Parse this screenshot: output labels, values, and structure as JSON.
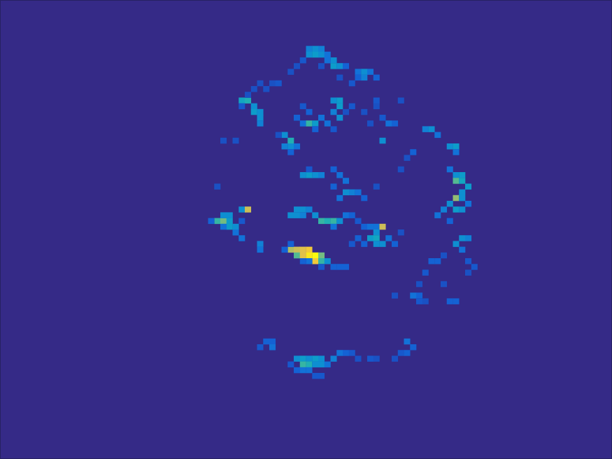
{
  "chart_data": {
    "type": "heatmap",
    "xlim": [
      0.5,
      100.5
    ],
    "ylim": [
      0.5,
      80.5
    ],
    "zlim": [
      0,
      1
    ],
    "tick_labels": false,
    "cells": [
      [
        51,
        9,
        0.25
      ],
      [
        52,
        9,
        0.3
      ],
      [
        53,
        9,
        0.25
      ],
      [
        51,
        10,
        0.3
      ],
      [
        52,
        10,
        0.35
      ],
      [
        53,
        10,
        0.3
      ],
      [
        54,
        10,
        0.2
      ],
      [
        55,
        11,
        0.3
      ],
      [
        55,
        12,
        0.35
      ],
      [
        56,
        12,
        0.3
      ],
      [
        54,
        11,
        0.2
      ],
      [
        50,
        11,
        0.12
      ],
      [
        49,
        12,
        0.1
      ],
      [
        53,
        12,
        0.1
      ],
      [
        57,
        12,
        0.15
      ],
      [
        59,
        13,
        0.2
      ],
      [
        60,
        13,
        0.3
      ],
      [
        61,
        13,
        0.2
      ],
      [
        59,
        14,
        0.15
      ],
      [
        60,
        14,
        0.25
      ],
      [
        62,
        14,
        0.15
      ],
      [
        58,
        15,
        0.12
      ],
      [
        56,
        14,
        0.1
      ],
      [
        48,
        13,
        0.1
      ],
      [
        45,
        15,
        0.1
      ],
      [
        46,
        15,
        0.12
      ],
      [
        43,
        15,
        0.1
      ],
      [
        44,
        16,
        0.1
      ],
      [
        42,
        16,
        0.1
      ],
      [
        40,
        18,
        0.4
      ],
      [
        41,
        18,
        0.45
      ],
      [
        42,
        19,
        0.3
      ],
      [
        42,
        20,
        0.35
      ],
      [
        43,
        20,
        0.3
      ],
      [
        43,
        21,
        0.3
      ],
      [
        43,
        22,
        0.25
      ],
      [
        41,
        17,
        0.1
      ],
      [
        40,
        19,
        0.12
      ],
      [
        50,
        19,
        0.12
      ],
      [
        51,
        20,
        0.15
      ],
      [
        49,
        21,
        0.15
      ],
      [
        50,
        22,
        0.2
      ],
      [
        51,
        22,
        0.5
      ],
      [
        52,
        22,
        0.35
      ],
      [
        53,
        21,
        0.2
      ],
      [
        54,
        22,
        0.2
      ],
      [
        55,
        18,
        0.3
      ],
      [
        56,
        18,
        0.35
      ],
      [
        56,
        19,
        0.35
      ],
      [
        55,
        20,
        0.25
      ],
      [
        56,
        21,
        0.3
      ],
      [
        52,
        23,
        0.15
      ],
      [
        55,
        23,
        0.12
      ],
      [
        57,
        20,
        0.1
      ],
      [
        58,
        19,
        0.12
      ],
      [
        60,
        20,
        0.1
      ],
      [
        62,
        19,
        0.1
      ],
      [
        63,
        21,
        0.12
      ],
      [
        64,
        22,
        0.2
      ],
      [
        65,
        22,
        0.15
      ],
      [
        61,
        22,
        0.1
      ],
      [
        63,
        25,
        0.3
      ],
      [
        62,
        18,
        0.12
      ],
      [
        66,
        18,
        0.1
      ],
      [
        47,
        24,
        0.3
      ],
      [
        48,
        25,
        0.45
      ],
      [
        48,
        26,
        0.3
      ],
      [
        47,
        26,
        0.25
      ],
      [
        49,
        26,
        0.2
      ],
      [
        48,
        27,
        0.15
      ],
      [
        46,
        24,
        0.1
      ],
      [
        37,
        25,
        0.1
      ],
      [
        39,
        25,
        0.1
      ],
      [
        50,
        31,
        0.3
      ],
      [
        51,
        31,
        0.35
      ],
      [
        52,
        31,
        0.3
      ],
      [
        53,
        31,
        0.25
      ],
      [
        51,
        30,
        0.12
      ],
      [
        55,
        30,
        0.15
      ],
      [
        56,
        31,
        0.2
      ],
      [
        57,
        32,
        0.2
      ],
      [
        58,
        34,
        0.25
      ],
      [
        57,
        34,
        0.3
      ],
      [
        56,
        35,
        0.2
      ],
      [
        59,
        34,
        0.2
      ],
      [
        60,
        35,
        0.15
      ],
      [
        55,
        33,
        0.15
      ],
      [
        62,
        33,
        0.1
      ],
      [
        66,
        30,
        0.1
      ],
      [
        68,
        27,
        0.15
      ],
      [
        67,
        28,
        0.1
      ],
      [
        36,
        33,
        0.1
      ],
      [
        70,
        23,
        0.25
      ],
      [
        71,
        23,
        0.3
      ],
      [
        72,
        24,
        0.2
      ],
      [
        74,
        26,
        0.3
      ],
      [
        75,
        26,
        0.35
      ],
      [
        75,
        27,
        0.2
      ],
      [
        74,
        30,
        0.2
      ],
      [
        75,
        31,
        0.3
      ],
      [
        76,
        31,
        0.35
      ],
      [
        75,
        32,
        0.55
      ],
      [
        76,
        32,
        0.4
      ],
      [
        77,
        33,
        0.35
      ],
      [
        76,
        34,
        0.3
      ],
      [
        75,
        35,
        0.65
      ],
      [
        76,
        35,
        0.3
      ],
      [
        74,
        36,
        0.3
      ],
      [
        75,
        37,
        0.35
      ],
      [
        76,
        37,
        0.3
      ],
      [
        73,
        37,
        0.25
      ],
      [
        72,
        38,
        0.2
      ],
      [
        74,
        39,
        0.15
      ],
      [
        77,
        36,
        0.2
      ],
      [
        76,
        42,
        0.3
      ],
      [
        77,
        42,
        0.25
      ],
      [
        75,
        43,
        0.3
      ],
      [
        76,
        44,
        0.2
      ],
      [
        71,
        46,
        0.15
      ],
      [
        72,
        46,
        0.15
      ],
      [
        73,
        45,
        0.1
      ],
      [
        77,
        46,
        0.12
      ],
      [
        78,
        47,
        0.12
      ],
      [
        77,
        48,
        0.1
      ],
      [
        36,
        39,
        0.5
      ],
      [
        37,
        39,
        0.6
      ],
      [
        37,
        38,
        0.3
      ],
      [
        38,
        38,
        0.3
      ],
      [
        40,
        37,
        0.3
      ],
      [
        41,
        37,
        0.75
      ],
      [
        38,
        39,
        0.35
      ],
      [
        39,
        40,
        0.3
      ],
      [
        38,
        40,
        0.35
      ],
      [
        39,
        41,
        0.2
      ],
      [
        40,
        42,
        0.2
      ],
      [
        43,
        43,
        0.25
      ],
      [
        43,
        44,
        0.2
      ],
      [
        37,
        40,
        0.2
      ],
      [
        35,
        39,
        0.15
      ],
      [
        40,
        39,
        0.12
      ],
      [
        49,
        37,
        0.3
      ],
      [
        50,
        37,
        0.3
      ],
      [
        51,
        37,
        0.25
      ],
      [
        48,
        38,
        0.3
      ],
      [
        49,
        38,
        0.3
      ],
      [
        50,
        38,
        0.25
      ],
      [
        52,
        38,
        0.3
      ],
      [
        53,
        39,
        0.5
      ],
      [
        54,
        39,
        0.45
      ],
      [
        55,
        39,
        0.5
      ],
      [
        56,
        39,
        0.3
      ],
      [
        55,
        40,
        0.2
      ],
      [
        57,
        38,
        0.2
      ],
      [
        58,
        38,
        0.15
      ],
      [
        59,
        39,
        0.12
      ],
      [
        60,
        40,
        0.15
      ],
      [
        61,
        40,
        0.2
      ],
      [
        62,
        40,
        0.2
      ],
      [
        63,
        40,
        0.75
      ],
      [
        62,
        41,
        0.3
      ],
      [
        61,
        42,
        0.35
      ],
      [
        62,
        42,
        0.4
      ],
      [
        63,
        43,
        0.3
      ],
      [
        62,
        43,
        0.3
      ],
      [
        64,
        42,
        0.2
      ],
      [
        65,
        43,
        0.15
      ],
      [
        60,
        43,
        0.15
      ],
      [
        58,
        43,
        0.12
      ],
      [
        59,
        42,
        0.15
      ],
      [
        66,
        41,
        0.1
      ],
      [
        48,
        44,
        0.7
      ],
      [
        49,
        44,
        0.75
      ],
      [
        50,
        44,
        0.8
      ],
      [
        51,
        44,
        0.85
      ],
      [
        49,
        45,
        0.55
      ],
      [
        50,
        45,
        0.8
      ],
      [
        51,
        45,
        0.95
      ],
      [
        52,
        45,
        1.0
      ],
      [
        53,
        45,
        0.6
      ],
      [
        52,
        46,
        0.85
      ],
      [
        53,
        46,
        0.5
      ],
      [
        54,
        46,
        0.3
      ],
      [
        51,
        46,
        0.2
      ],
      [
        50,
        46,
        0.15
      ],
      [
        55,
        47,
        0.15
      ],
      [
        56,
        47,
        0.15
      ],
      [
        57,
        47,
        0.15
      ],
      [
        53,
        47,
        0.12
      ],
      [
        48,
        43,
        0.15
      ],
      [
        47,
        44,
        0.15
      ],
      [
        70,
        48,
        0.12
      ],
      [
        69,
        50,
        0.1
      ],
      [
        68,
        52,
        0.2
      ],
      [
        69,
        52,
        0.15
      ],
      [
        69,
        53,
        0.12
      ],
      [
        70,
        53,
        0.1
      ],
      [
        74,
        53,
        0.15
      ],
      [
        75,
        53,
        0.15
      ],
      [
        65,
        52,
        0.1
      ],
      [
        73,
        50,
        0.1
      ],
      [
        44,
        60,
        0.15
      ],
      [
        45,
        60,
        0.15
      ],
      [
        45,
        61,
        0.2
      ],
      [
        43,
        61,
        0.12
      ],
      [
        49,
        63,
        0.3
      ],
      [
        50,
        63,
        0.35
      ],
      [
        51,
        63,
        0.3
      ],
      [
        52,
        63,
        0.35
      ],
      [
        53,
        63,
        0.3
      ],
      [
        50,
        64,
        0.5
      ],
      [
        51,
        64,
        0.45
      ],
      [
        52,
        64,
        0.3
      ],
      [
        53,
        64,
        0.3
      ],
      [
        55,
        63,
        0.25
      ],
      [
        54,
        64,
        0.2
      ],
      [
        56,
        62,
        0.2
      ],
      [
        57,
        62,
        0.15
      ],
      [
        58,
        62,
        0.12
      ],
      [
        59,
        63,
        0.1
      ],
      [
        61,
        63,
        0.12
      ],
      [
        62,
        63,
        0.1
      ],
      [
        66,
        62,
        0.12
      ],
      [
        67,
        62,
        0.15
      ],
      [
        68,
        61,
        0.15
      ],
      [
        67,
        60,
        0.2
      ],
      [
        65,
        63,
        0.1
      ],
      [
        50,
        65,
        0.2
      ],
      [
        51,
        65,
        0.2
      ],
      [
        52,
        66,
        0.12
      ],
      [
        53,
        66,
        0.12
      ],
      [
        49,
        65,
        0.15
      ],
      [
        48,
        64,
        0.12
      ]
    ]
  }
}
